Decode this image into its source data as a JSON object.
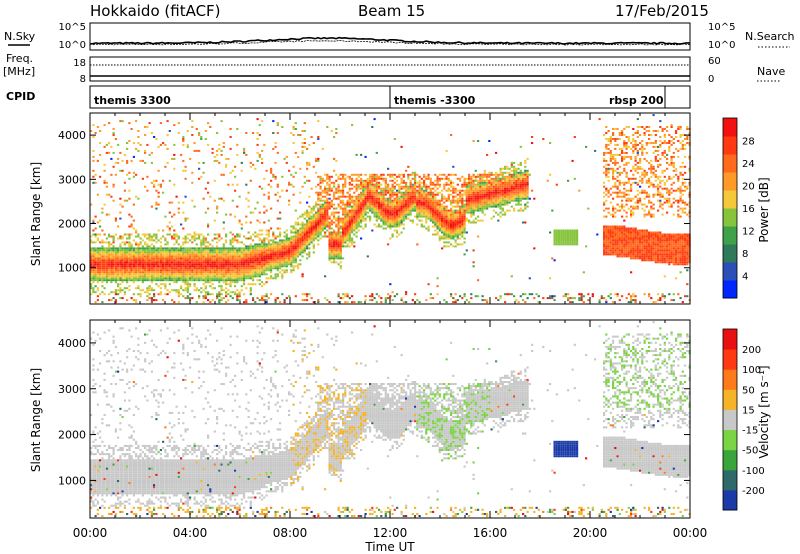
{
  "header": {
    "station": "Hokkaido (fitACF)",
    "beam": "Beam 15",
    "date": "17/Feb/2015"
  },
  "noise_panel": {
    "left_label": "N.Sky",
    "left_ticks": [
      "10^5",
      "10^0"
    ],
    "right_ticks": [
      "10^5",
      "10^0"
    ],
    "right_label": "N.Search"
  },
  "freq_panel": {
    "left_label_line1": "Freq.",
    "left_label_line2": "[MHz]",
    "left_ticks": [
      "18",
      "8"
    ],
    "right_ticks": [
      "60",
      "0"
    ],
    "right_label": "Nave"
  },
  "cpid_panel": {
    "label": "CPID",
    "segments": [
      {
        "name": "themis 3300",
        "start_hour": 0,
        "end_hour": 12
      },
      {
        "name": "themis -3300",
        "start_hour": 12,
        "end_hour": 23
      },
      {
        "name": "rbsp 200",
        "start_hour": 23,
        "end_hour": 24
      }
    ]
  },
  "chart_data": [
    {
      "type": "heatmap",
      "name": "power",
      "ylabel": "Slant Range [km]",
      "ylim": [
        180,
        4500
      ],
      "yticks": [
        1000,
        2000,
        3000,
        4000
      ],
      "colorbar_label": "Power [dB]",
      "colorbar_ticks": [
        "4",
        "8",
        "12",
        "16",
        "20",
        "24",
        "28"
      ],
      "colorbar_colors": [
        "#0026ff",
        "#2a4fb8",
        "#2f7a5a",
        "#3fa24a",
        "#86c43c",
        "#f5c83a",
        "#ff9a28",
        "#ff6a1c",
        "#ff3a12",
        "#f21010"
      ],
      "colorbar_range": [
        0,
        32
      ]
    },
    {
      "type": "heatmap",
      "name": "velocity",
      "ylabel": "Slant Range [km]",
      "ylim": [
        180,
        4500
      ],
      "yticks": [
        1000,
        2000,
        3000,
        4000
      ],
      "colorbar_label": "Velocity [m s⁻¹]",
      "colorbar_ticks": [
        "200",
        "100",
        "50",
        "15",
        "-15",
        "-50",
        "-100",
        "-200"
      ],
      "colorbar_colors": [
        "#1a3aa8",
        "#2f6a6a",
        "#3aa53a",
        "#7ad444",
        "#c8c8c8",
        "#f5b428",
        "#ff7a18",
        "#ff3a12",
        "#e81010"
      ]
    }
  ],
  "x_axis": {
    "ticks": [
      "00:00",
      "04:00",
      "08:00",
      "12:00",
      "16:00",
      "20:00",
      "00:00"
    ],
    "label": "Time UT",
    "range_hours": [
      0,
      24
    ]
  },
  "colors": {
    "grey_scatter": "#c8c8c8",
    "ground": "#f5b428"
  }
}
